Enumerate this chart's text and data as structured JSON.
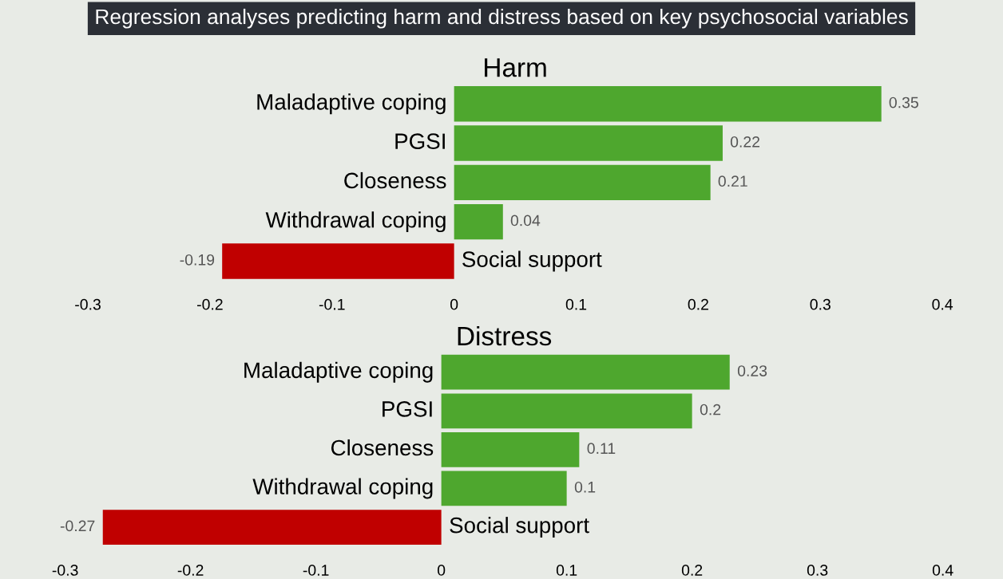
{
  "chart_data": [
    {
      "type": "bar",
      "orientation": "horizontal",
      "title": "Regression analyses predicting harm and distress based on key psychosocial variables",
      "subtitle": "Harm",
      "categories": [
        "Maladaptive coping",
        "PGSI",
        "Closeness",
        "Withdrawal coping",
        "Social support"
      ],
      "values": [
        0.35,
        0.22,
        0.21,
        0.04,
        -0.19
      ],
      "colors": [
        "#4ea72e",
        "#4ea72e",
        "#4ea72e",
        "#4ea72e",
        "#c00000"
      ],
      "xlim": [
        -0.3,
        0.4
      ],
      "xticks": [
        -0.3,
        -0.2,
        -0.1,
        0,
        0.1,
        0.2,
        0.3,
        0.4
      ],
      "grid": false,
      "data_labels": true
    },
    {
      "type": "bar",
      "orientation": "horizontal",
      "title": "Distress",
      "categories": [
        "Maladaptive coping",
        "PGSI",
        "Closeness",
        "Withdrawal coping",
        "Social support"
      ],
      "values": [
        0.23,
        0.2,
        0.11,
        0.1,
        -0.27
      ],
      "colors": [
        "#4ea72e",
        "#4ea72e",
        "#4ea72e",
        "#4ea72e",
        "#c00000"
      ],
      "xlim": [
        -0.3,
        0.4
      ],
      "xticks": [
        -0.3,
        -0.2,
        -0.1,
        0,
        0.1,
        0.2,
        0.3,
        0.4
      ],
      "grid": false,
      "data_labels": true
    }
  ]
}
